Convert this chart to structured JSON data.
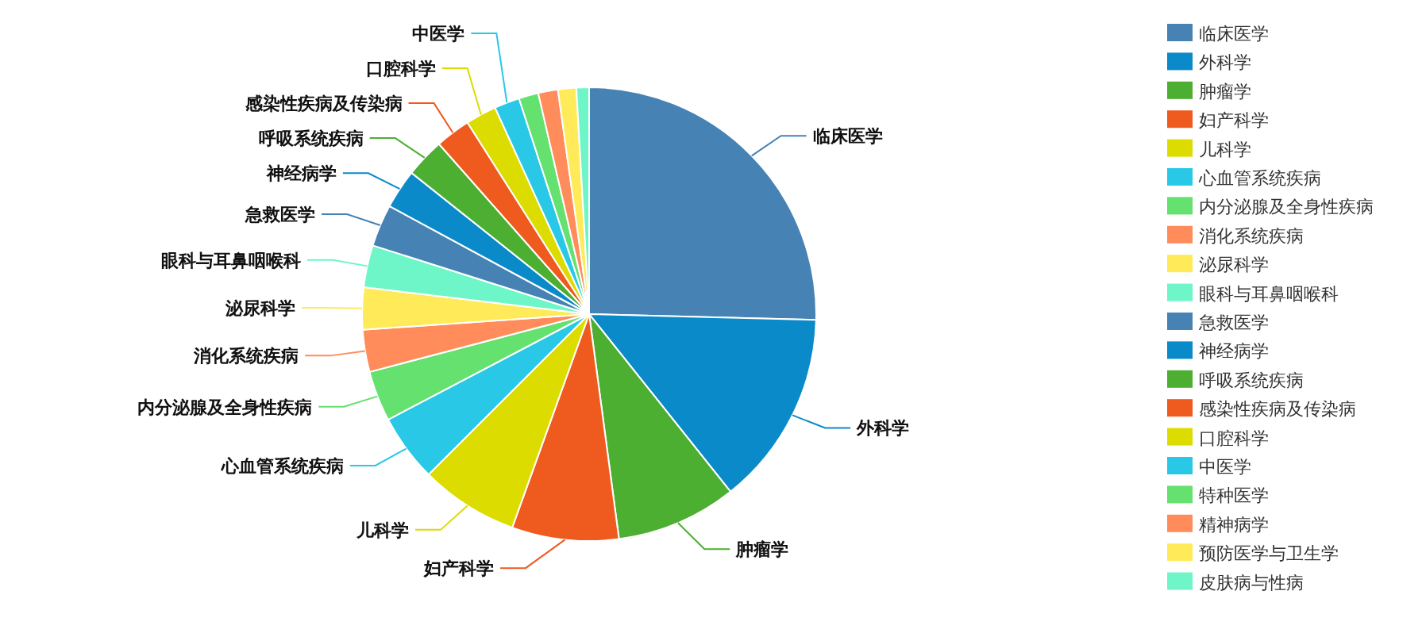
{
  "chart_data": {
    "type": "pie",
    "legend": "right",
    "categories": [
      "临床医学",
      "外科学",
      "肿瘤学",
      "妇产科学",
      "儿科学",
      "心血管系统疾病",
      "内分泌腺及全身性疾病",
      "消化系统疾病",
      "泌尿科学",
      "眼科与耳鼻咽喉科",
      "急救医学",
      "神经病学",
      "呼吸系统疾病",
      "感染性疾病及传染病",
      "口腔科学",
      "中医学",
      "特种医学",
      "精神病学",
      "预防医学与卫生学",
      "皮肤病与性病"
    ],
    "values": [
      25.4,
      13.9,
      8.6,
      7.6,
      7.0,
      4.8,
      3.6,
      3.0,
      3.0,
      3.0,
      3.0,
      2.8,
      2.8,
      2.5,
      2.2,
      1.8,
      1.4,
      1.4,
      1.3,
      0.9
    ],
    "colors": [
      "#4682b4",
      "#0a8ac8",
      "#4caf32",
      "#ef5a1e",
      "#dcdc00",
      "#28c8e6",
      "#64e16e",
      "#ff8c5a",
      "#ffeb5a",
      "#6ef5c8",
      "#4682b4",
      "#0a8ac8",
      "#4caf32",
      "#ef5a1e",
      "#dcdc00",
      "#28c8e6",
      "#64e16e",
      "#ff8c5a",
      "#ffeb5a",
      "#6ef5c8"
    ]
  }
}
